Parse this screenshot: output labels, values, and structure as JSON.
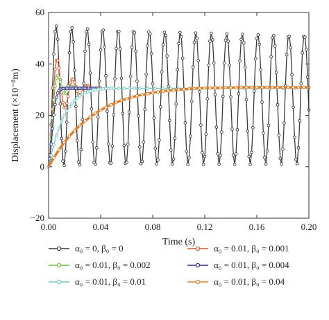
{
  "chart_data": {
    "type": "line",
    "xlabel": "Time (s)",
    "ylabel": "Displacement (×10⁻⁸m)",
    "xlim": [
      0.0,
      0.2
    ],
    "ylim": [
      -20,
      60
    ],
    "xticks": [
      "0.00",
      "0.04",
      "0.08",
      "0.12",
      "0.16",
      "0.20"
    ],
    "xtick_values": [
      0.0,
      0.04,
      0.08,
      0.12,
      0.16,
      0.2
    ],
    "yticks": [
      "−20",
      "0",
      "20",
      "40",
      "60"
    ],
    "ytick_values": [
      -20,
      0,
      20,
      40,
      60
    ],
    "grid": false,
    "legend_position": "bottom",
    "series": [
      {
        "name": "α₀ = 0, β₀ = 0",
        "color": "#3a3a3a",
        "x": [
          0.0,
          0.001,
          0.002,
          0.003,
          0.004,
          0.005,
          0.006,
          0.007,
          0.008,
          0.009,
          0.01,
          0.011,
          0.012,
          0.013,
          0.014,
          0.015,
          0.016,
          0.017,
          0.018,
          0.019,
          0.02,
          0.021,
          0.022,
          0.023,
          0.024,
          0.025,
          0.026,
          0.027,
          0.028,
          0.029,
          0.03,
          0.031,
          0.032,
          0.033,
          0.034,
          0.035,
          0.036,
          0.037,
          0.038,
          0.039,
          0.04,
          0.041,
          0.042,
          0.043,
          0.044,
          0.045,
          0.046,
          0.047,
          0.048,
          0.049,
          0.05,
          0.051,
          0.052,
          0.053,
          0.054,
          0.055,
          0.056,
          0.057,
          0.058,
          0.059,
          0.06,
          0.061,
          0.062,
          0.063,
          0.064,
          0.065,
          0.066,
          0.067,
          0.068,
          0.069,
          0.07,
          0.071,
          0.072,
          0.073,
          0.074,
          0.075,
          0.076,
          0.077,
          0.078,
          0.079,
          0.08,
          0.081,
          0.082,
          0.083,
          0.084,
          0.085,
          0.086,
          0.087,
          0.088,
          0.089,
          0.09,
          0.091,
          0.092,
          0.093,
          0.094,
          0.095,
          0.096,
          0.097,
          0.098,
          0.099,
          0.1,
          0.101,
          0.102,
          0.103,
          0.104,
          0.105,
          0.106,
          0.107,
          0.108,
          0.109,
          0.11,
          0.111,
          0.112,
          0.113,
          0.114,
          0.115,
          0.116,
          0.117,
          0.118,
          0.119,
          0.12,
          0.121,
          0.122,
          0.123,
          0.124,
          0.125,
          0.126,
          0.127,
          0.128,
          0.129,
          0.13,
          0.131,
          0.132,
          0.133,
          0.134,
          0.135,
          0.136,
          0.137,
          0.138,
          0.139,
          0.14,
          0.141,
          0.142,
          0.143,
          0.144,
          0.145,
          0.146,
          0.147,
          0.148,
          0.149,
          0.15,
          0.151,
          0.152,
          0.153,
          0.154,
          0.155,
          0.156,
          0.157,
          0.158,
          0.159,
          0.16,
          0.161,
          0.162,
          0.163,
          0.164,
          0.165,
          0.166,
          0.167,
          0.168,
          0.169,
          0.17,
          0.171,
          0.172,
          0.173,
          0.174,
          0.175,
          0.176,
          0.177,
          0.178,
          0.179,
          0.18,
          0.181,
          0.182,
          0.183,
          0.184,
          0.185,
          0.186,
          0.187,
          0.188,
          0.189,
          0.19,
          0.191,
          0.192,
          0.193,
          0.194,
          0.195,
          0.196,
          0.197,
          0.198,
          0.199,
          0.2
        ],
        "y": [
          0.0,
          4.7,
          16.3,
          30.6,
          43.8,
          52.5,
          54.7,
          49.6,
          38.5,
          24.4,
          11.0,
          2.2,
          0.5,
          6.0,
          17.3,
          31.5,
          44.3,
          52.5,
          54.0,
          48.6,
          37.5,
          23.4,
          10.2,
          1.9,
          0.7,
          6.7,
          18.3,
          32.4,
          44.9,
          52.5,
          53.6,
          47.6,
          36.4,
          22.5,
          9.6,
          1.7,
          1.0,
          7.4,
          19.3,
          33.3,
          45.4,
          52.5,
          53.1,
          46.6,
          35.4,
          21.6,
          8.9,
          1.5,
          1.4,
          8.1,
          20.3,
          34.2,
          46.0,
          52.5,
          52.6,
          45.8,
          34.4,
          20.7,
          8.3,
          1.3,
          1.7,
          8.8,
          21.3,
          35.1,
          46.5,
          52.5,
          52.1,
          44.9,
          33.3,
          19.8,
          7.7,
          1.2,
          2.1,
          9.6,
          22.3,
          36.0,
          47.0,
          52.4,
          51.6,
          44.0,
          32.3,
          18.9,
          7.1,
          1.1,
          2.6,
          10.3,
          23.3,
          36.9,
          47.5,
          52.3,
          51.1,
          43.1,
          31.2,
          18.0,
          6.5,
          1.0,
          3.0,
          11.1,
          24.4,
          37.8,
          47.9,
          52.2,
          50.5,
          42.2,
          30.2,
          17.1,
          6.0,
          0.9,
          3.5,
          11.9,
          25.4,
          38.7,
          48.4,
          52.0,
          50.0,
          41.3,
          29.2,
          16.2,
          5.5,
          0.9,
          4.0,
          12.7,
          26.4,
          39.5,
          48.8,
          51.9,
          49.4,
          40.4,
          28.1,
          15.4,
          5.0,
          0.9,
          4.5,
          13.5,
          27.4,
          40.4,
          49.2,
          51.7,
          48.8,
          39.5,
          27.1,
          14.6,
          4.5,
          0.9,
          5.0,
          14.4,
          28.4,
          41.2,
          49.5,
          51.5,
          48.2,
          38.6,
          26.1,
          13.8,
          4.0,
          0.9,
          5.6,
          15.2,
          29.4,
          42.0,
          49.9,
          51.3,
          47.6,
          37.7,
          25.1,
          13.0,
          3.6,
          1.0,
          6.2,
          16.1,
          30.4,
          42.8,
          50.2,
          51.0,
          47.0,
          36.7,
          24.1,
          12.2,
          3.2,
          1.1,
          6.8,
          17.0,
          31.4,
          43.6,
          50.4,
          50.7,
          46.3,
          35.8,
          23.1,
          11.5,
          2.8,
          1.2,
          7.4,
          17.9,
          32.3,
          44.3,
          50.7,
          50.4,
          45.6,
          34.8,
          22.1
        ]
      },
      {
        "name": "α₀ = 0.01, β₀ = 0.001",
        "color": "#d9572b",
        "x": [
          0.0,
          0.001,
          0.002,
          0.003,
          0.004,
          0.005,
          0.006,
          0.007,
          0.008,
          0.009,
          0.01,
          0.011,
          0.012,
          0.013,
          0.014,
          0.015,
          0.016,
          0.017,
          0.018,
          0.019,
          0.02,
          0.021,
          0.022,
          0.023,
          0.024,
          0.025,
          0.026,
          0.027,
          0.028,
          0.029,
          0.03,
          0.031,
          0.032,
          0.033,
          0.034,
          0.035,
          0.036,
          0.037,
          0.038,
          0.039,
          0.04
        ],
        "y": [
          0.0,
          4.0,
          12.5,
          22.4,
          31.3,
          37.9,
          41.4,
          41.3,
          38.4,
          33.8,
          28.9,
          25.0,
          23.0,
          23.0,
          24.7,
          27.4,
          30.4,
          32.8,
          34.1,
          34.0,
          32.8,
          31.1,
          29.4,
          28.2,
          27.8,
          28.2,
          29.1,
          30.2,
          31.1,
          31.6,
          31.6,
          31.3,
          30.8,
          30.3,
          30.0,
          29.9,
          30.0,
          30.2,
          30.4,
          30.6,
          30.6
        ]
      },
      {
        "name": "α₀ = 0.01, β₀ = 0.002",
        "color": "#6cbd45",
        "x": [
          0.0,
          0.001,
          0.002,
          0.003,
          0.004,
          0.005,
          0.006,
          0.007,
          0.008,
          0.009,
          0.01,
          0.011,
          0.012,
          0.013,
          0.014,
          0.015,
          0.016,
          0.017,
          0.018,
          0.019,
          0.02,
          0.021,
          0.022,
          0.023,
          0.024,
          0.025,
          0.026,
          0.027,
          0.028,
          0.029,
          0.03
        ],
        "y": [
          0.0,
          3.6,
          10.8,
          18.9,
          26.0,
          31.3,
          34.5,
          35.5,
          34.7,
          33.0,
          31.0,
          29.5,
          28.6,
          28.5,
          29.1,
          29.9,
          30.6,
          31.1,
          31.2,
          31.0,
          30.7,
          30.4,
          30.3,
          30.3,
          30.4,
          30.5,
          30.6,
          30.6,
          30.6,
          30.5,
          30.5
        ]
      },
      {
        "name": "α₀ = 0.01, β₀ = 0.004",
        "color": "#2b2a86",
        "x": [
          0.0,
          0.001,
          0.002,
          0.003,
          0.004,
          0.005,
          0.006,
          0.007,
          0.008,
          0.009,
          0.01,
          0.011,
          0.012,
          0.013,
          0.014,
          0.015,
          0.016,
          0.017,
          0.018,
          0.019,
          0.02,
          0.021,
          0.022,
          0.023,
          0.024,
          0.025,
          0.026,
          0.027,
          0.028,
          0.029,
          0.03,
          0.031,
          0.032,
          0.033,
          0.034,
          0.035,
          0.036,
          0.037,
          0.038
        ],
        "y": [
          0.0,
          3.1,
          8.8,
          14.8,
          20.1,
          24.2,
          27.0,
          28.7,
          29.6,
          30.1,
          30.3,
          30.4,
          30.4,
          30.5,
          30.5,
          30.5,
          30.5,
          30.5,
          30.5,
          30.5,
          30.5,
          30.5,
          30.5,
          30.5,
          30.5,
          30.5,
          30.5,
          30.5,
          30.5,
          30.5,
          30.5,
          30.5,
          30.5,
          30.5,
          30.5,
          30.5,
          30.5,
          30.5,
          30.5
        ]
      },
      {
        "name": "α₀ = 0.01, β₀ = 0.01",
        "color": "#6ec9c6",
        "x": [
          0.0,
          0.002,
          0.004,
          0.006,
          0.008,
          0.01,
          0.012,
          0.014,
          0.016,
          0.018,
          0.02,
          0.022,
          0.024,
          0.026,
          0.028,
          0.03,
          0.032,
          0.034,
          0.036,
          0.038,
          0.04,
          0.042,
          0.044,
          0.046,
          0.048,
          0.05,
          0.054,
          0.058,
          0.062,
          0.066,
          0.07,
          0.076,
          0.082,
          0.088,
          0.094,
          0.1,
          0.11,
          0.12,
          0.13,
          0.14,
          0.15,
          0.16,
          0.17,
          0.18,
          0.19,
          0.2
        ],
        "y": [
          0.0,
          4.5,
          8.5,
          12.0,
          15.0,
          17.6,
          19.8,
          21.7,
          23.3,
          24.7,
          25.8,
          26.8,
          27.6,
          28.2,
          28.7,
          29.1,
          29.4,
          29.7,
          29.9,
          30.0,
          30.2,
          30.3,
          30.4,
          30.4,
          30.5,
          30.5,
          30.5,
          30.5,
          30.5,
          30.5,
          30.5,
          30.5,
          30.5,
          30.5,
          30.5,
          30.5,
          30.5,
          30.5,
          30.5,
          30.5,
          30.5,
          30.5,
          30.5,
          30.5,
          30.5,
          30.5
        ]
      },
      {
        "name": "α₀ = 0.01, β₀ = 0.04",
        "color": "#e07f2a",
        "x": [
          0.0,
          0.004,
          0.008,
          0.012,
          0.016,
          0.02,
          0.024,
          0.028,
          0.032,
          0.036,
          0.04,
          0.044,
          0.048,
          0.052,
          0.056,
          0.06,
          0.064,
          0.068,
          0.072,
          0.076,
          0.08,
          0.084,
          0.088,
          0.092,
          0.096,
          0.1,
          0.104,
          0.108,
          0.112,
          0.116,
          0.12,
          0.124,
          0.128,
          0.132,
          0.136,
          0.14,
          0.144,
          0.148,
          0.152,
          0.156,
          0.16,
          0.164,
          0.168,
          0.172,
          0.176,
          0.18,
          0.184,
          0.188,
          0.192,
          0.196,
          0.2
        ],
        "y": [
          0.0,
          3.5,
          6.6,
          9.4,
          11.9,
          14.1,
          16.1,
          17.8,
          19.4,
          20.8,
          22.0,
          23.1,
          24.1,
          25.0,
          25.8,
          26.4,
          27.0,
          27.6,
          28.0,
          28.4,
          28.8,
          29.1,
          29.4,
          29.6,
          29.8,
          30.0,
          30.1,
          30.3,
          30.4,
          30.5,
          30.6,
          30.6,
          30.7,
          30.7,
          30.8,
          30.8,
          30.8,
          30.9,
          30.9,
          30.9,
          30.9,
          30.9,
          30.9,
          30.9,
          30.9,
          30.9,
          30.9,
          30.9,
          30.9,
          30.9,
          30.9
        ]
      }
    ]
  }
}
